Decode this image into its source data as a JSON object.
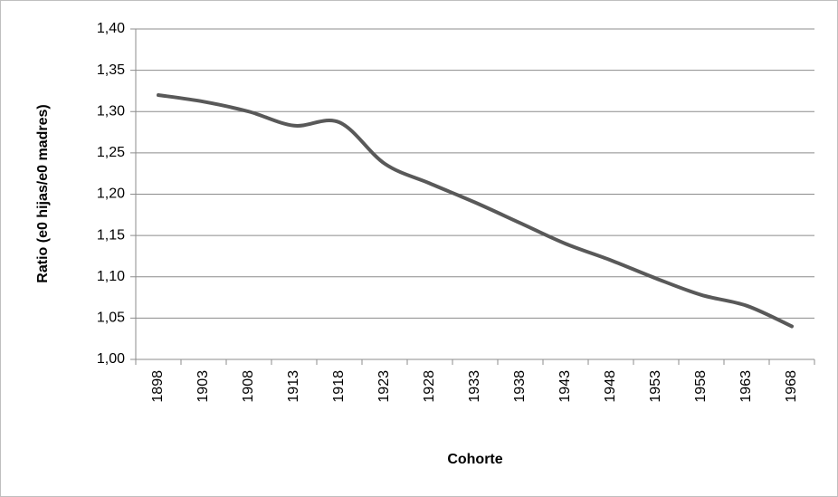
{
  "chart_data": {
    "type": "line",
    "y_label": "Ratio (e0 hijas/e0 madres)",
    "x_label": "Cohorte",
    "categories": [
      "1898",
      "1903",
      "1908",
      "1913",
      "1918",
      "1923",
      "1928",
      "1933",
      "1938",
      "1943",
      "1948",
      "1953",
      "1958",
      "1963",
      "1968"
    ],
    "values": [
      1.32,
      1.312,
      1.3,
      1.283,
      1.287,
      1.237,
      1.213,
      1.19,
      1.165,
      1.14,
      1.12,
      1.098,
      1.078,
      1.065,
      1.04
    ],
    "color": "#595959",
    "ylim": [
      1.0,
      1.4
    ],
    "yticks": [
      {
        "value": 1.0,
        "label": "1,00"
      },
      {
        "value": 1.05,
        "label": "1,05"
      },
      {
        "value": 1.1,
        "label": "1,10"
      },
      {
        "value": 1.15,
        "label": "1,15"
      },
      {
        "value": 1.2,
        "label": "1,20"
      },
      {
        "value": 1.25,
        "label": "1,25"
      },
      {
        "value": 1.3,
        "label": "1,30"
      },
      {
        "value": 1.35,
        "label": "1,35"
      },
      {
        "value": 1.4,
        "label": "1,40"
      }
    ],
    "grid": true,
    "smooth": true
  }
}
